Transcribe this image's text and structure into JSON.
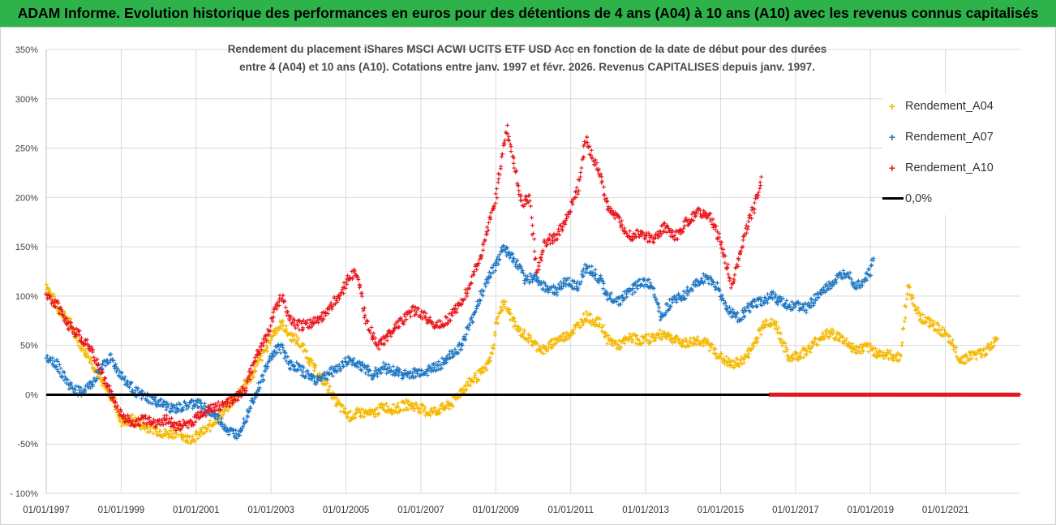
{
  "banner": {
    "title": "ADAM Informe. Evolution historique des performances en euros pour des détentions de 4 ans (A04) à 10 ans (A10) avec les revenus connus capitalisés"
  },
  "chart_data": {
    "type": "scatter",
    "title_line1": "Rendement du placement iShares MSCI ACWI UCITS ETF USD Acc en fonction de la date de début pour des durées",
    "title_line2": "entre 4 (A04) et 10 ans (A10). Cotations entre janv. 1997 et févr. 2026. Revenus CAPITALISES depuis janv. 1997.",
    "ylim": [
      -100,
      350
    ],
    "yticks": [
      -100,
      -50,
      0,
      50,
      100,
      150,
      200,
      250,
      300,
      350
    ],
    "ytick_labels": [
      "- 100%",
      "-50%",
      "0%",
      "50%",
      "100%",
      "150%",
      "200%",
      "250%",
      "300%",
      "350%"
    ],
    "xlim": [
      1997.0,
      2023.0
    ],
    "xticks": [
      1997,
      1999,
      2001,
      2003,
      2005,
      2007,
      2009,
      2011,
      2013,
      2015,
      2017,
      2019,
      2021
    ],
    "xtick_labels": [
      "01/01/1997",
      "01/01/1999",
      "01/01/2001",
      "01/01/2003",
      "01/01/2005",
      "01/01/2007",
      "01/01/2009",
      "01/01/2011",
      "01/01/2013",
      "01/01/2015",
      "01/01/2017",
      "01/01/2019",
      "01/01/2021"
    ],
    "zero_line_label": "0,0%",
    "series": [
      {
        "name": "Rendement_A04",
        "color": "#f5b800",
        "points": [
          [
            1997.0,
            112
          ],
          [
            1997.3,
            88
          ],
          [
            1997.6,
            75
          ],
          [
            1997.9,
            52
          ],
          [
            1998.2,
            35
          ],
          [
            1998.5,
            10
          ],
          [
            1998.8,
            -5
          ],
          [
            1999.0,
            -28
          ],
          [
            1999.3,
            -25
          ],
          [
            1999.6,
            -32
          ],
          [
            1999.9,
            -35
          ],
          [
            2000.2,
            -40
          ],
          [
            2000.5,
            -38
          ],
          [
            2000.8,
            -45
          ],
          [
            2001.0,
            -42
          ],
          [
            2001.3,
            -35
          ],
          [
            2001.6,
            -22
          ],
          [
            2001.9,
            -10
          ],
          [
            2002.2,
            5
          ],
          [
            2002.5,
            20
          ],
          [
            2002.7,
            35
          ],
          [
            2002.9,
            50
          ],
          [
            2003.1,
            65
          ],
          [
            2003.3,
            72
          ],
          [
            2003.5,
            60
          ],
          [
            2003.7,
            55
          ],
          [
            2003.9,
            45
          ],
          [
            2004.1,
            30
          ],
          [
            2004.3,
            18
          ],
          [
            2004.5,
            10
          ],
          [
            2004.7,
            -5
          ],
          [
            2004.9,
            -15
          ],
          [
            2005.1,
            -22
          ],
          [
            2005.4,
            -18
          ],
          [
            2005.7,
            -20
          ],
          [
            2006.0,
            -12
          ],
          [
            2006.3,
            -15
          ],
          [
            2006.6,
            -10
          ],
          [
            2006.9,
            -12
          ],
          [
            2007.2,
            -18
          ],
          [
            2007.5,
            -15
          ],
          [
            2007.8,
            -10
          ],
          [
            2008.1,
            5
          ],
          [
            2008.4,
            15
          ],
          [
            2008.7,
            25
          ],
          [
            2008.9,
            40
          ],
          [
            2009.0,
            70
          ],
          [
            2009.2,
            95
          ],
          [
            2009.4,
            80
          ],
          [
            2009.6,
            65
          ],
          [
            2009.8,
            60
          ],
          [
            2010.0,
            52
          ],
          [
            2010.3,
            45
          ],
          [
            2010.6,
            55
          ],
          [
            2010.9,
            60
          ],
          [
            2011.2,
            70
          ],
          [
            2011.4,
            80
          ],
          [
            2011.6,
            75
          ],
          [
            2011.8,
            72
          ],
          [
            2012.0,
            55
          ],
          [
            2012.3,
            50
          ],
          [
            2012.6,
            58
          ],
          [
            2012.9,
            55
          ],
          [
            2013.2,
            58
          ],
          [
            2013.5,
            62
          ],
          [
            2013.8,
            55
          ],
          [
            2014.1,
            52
          ],
          [
            2014.4,
            56
          ],
          [
            2014.7,
            50
          ],
          [
            2015.0,
            38
          ],
          [
            2015.3,
            30
          ],
          [
            2015.6,
            35
          ],
          [
            2015.8,
            45
          ],
          [
            2016.0,
            60
          ],
          [
            2016.2,
            75
          ],
          [
            2016.5,
            70
          ],
          [
            2016.8,
            38
          ],
          [
            2017.1,
            40
          ],
          [
            2017.4,
            48
          ],
          [
            2017.7,
            60
          ],
          [
            2018.0,
            62
          ],
          [
            2018.3,
            55
          ],
          [
            2018.6,
            45
          ],
          [
            2018.9,
            48
          ],
          [
            2019.2,
            42
          ],
          [
            2019.5,
            40
          ],
          [
            2019.8,
            38
          ],
          [
            2020.0,
            110
          ],
          [
            2020.3,
            80
          ],
          [
            2020.6,
            72
          ],
          [
            2020.9,
            65
          ],
          [
            2021.2,
            50
          ],
          [
            2021.4,
            35
          ],
          [
            2021.7,
            40
          ],
          [
            2022.0,
            42
          ],
          [
            2022.2,
            48
          ],
          [
            2022.4,
            60
          ]
        ]
      },
      {
        "name": "Rendement_A07",
        "color": "#1f77c4",
        "points": [
          [
            1997.0,
            40
          ],
          [
            1997.3,
            30
          ],
          [
            1997.6,
            10
          ],
          [
            1997.9,
            2
          ],
          [
            1998.2,
            10
          ],
          [
            1998.5,
            30
          ],
          [
            1998.7,
            38
          ],
          [
            1998.9,
            25
          ],
          [
            1999.2,
            10
          ],
          [
            1999.5,
            0
          ],
          [
            1999.8,
            -5
          ],
          [
            2000.1,
            -10
          ],
          [
            2000.4,
            -15
          ],
          [
            2000.7,
            -12
          ],
          [
            2001.0,
            -8
          ],
          [
            2001.3,
            -15
          ],
          [
            2001.6,
            -25
          ],
          [
            2001.9,
            -38
          ],
          [
            2002.1,
            -40
          ],
          [
            2002.3,
            -25
          ],
          [
            2002.5,
            -5
          ],
          [
            2002.7,
            10
          ],
          [
            2002.9,
            30
          ],
          [
            2003.1,
            45
          ],
          [
            2003.3,
            48
          ],
          [
            2003.5,
            30
          ],
          [
            2003.7,
            28
          ],
          [
            2003.9,
            22
          ],
          [
            2004.2,
            15
          ],
          [
            2004.5,
            20
          ],
          [
            2004.8,
            28
          ],
          [
            2005.1,
            35
          ],
          [
            2005.4,
            30
          ],
          [
            2005.7,
            20
          ],
          [
            2006.0,
            28
          ],
          [
            2006.3,
            24
          ],
          [
            2006.6,
            20
          ],
          [
            2006.9,
            22
          ],
          [
            2007.2,
            25
          ],
          [
            2007.5,
            30
          ],
          [
            2007.8,
            40
          ],
          [
            2008.1,
            50
          ],
          [
            2008.4,
            80
          ],
          [
            2008.6,
            100
          ],
          [
            2008.8,
            120
          ],
          [
            2009.0,
            130
          ],
          [
            2009.2,
            150
          ],
          [
            2009.4,
            140
          ],
          [
            2009.6,
            130
          ],
          [
            2009.8,
            115
          ],
          [
            2010.0,
            120
          ],
          [
            2010.3,
            110
          ],
          [
            2010.6,
            105
          ],
          [
            2010.9,
            115
          ],
          [
            2011.2,
            110
          ],
          [
            2011.4,
            130
          ],
          [
            2011.6,
            125
          ],
          [
            2011.8,
            115
          ],
          [
            2012.0,
            100
          ],
          [
            2012.3,
            95
          ],
          [
            2012.6,
            105
          ],
          [
            2012.9,
            115
          ],
          [
            2013.2,
            110
          ],
          [
            2013.4,
            80
          ],
          [
            2013.7,
            95
          ],
          [
            2014.0,
            100
          ],
          [
            2014.3,
            110
          ],
          [
            2014.6,
            120
          ],
          [
            2014.9,
            110
          ],
          [
            2015.2,
            85
          ],
          [
            2015.5,
            78
          ],
          [
            2015.8,
            90
          ],
          [
            2016.1,
            95
          ],
          [
            2016.4,
            100
          ],
          [
            2016.7,
            92
          ],
          [
            2017.0,
            90
          ],
          [
            2017.3,
            88
          ],
          [
            2017.6,
            100
          ],
          [
            2017.9,
            110
          ],
          [
            2018.2,
            120
          ],
          [
            2018.4,
            125
          ],
          [
            2018.6,
            110
          ],
          [
            2018.8,
            115
          ],
          [
            2019.0,
            125
          ],
          [
            2019.1,
            140
          ]
        ]
      },
      {
        "name": "Rendement_A10",
        "color": "#e8171d",
        "points": [
          [
            1997.0,
            100
          ],
          [
            1997.3,
            90
          ],
          [
            1997.6,
            70
          ],
          [
            1997.9,
            60
          ],
          [
            1998.2,
            45
          ],
          [
            1998.5,
            20
          ],
          [
            1998.8,
            -5
          ],
          [
            1999.0,
            -20
          ],
          [
            1999.3,
            -30
          ],
          [
            1999.6,
            -25
          ],
          [
            1999.9,
            -28
          ],
          [
            2000.2,
            -25
          ],
          [
            2000.5,
            -32
          ],
          [
            2000.8,
            -30
          ],
          [
            2001.1,
            -20
          ],
          [
            2001.4,
            -15
          ],
          [
            2001.7,
            -10
          ],
          [
            2002.0,
            -5
          ],
          [
            2002.3,
            5
          ],
          [
            2002.6,
            40
          ],
          [
            2002.9,
            60
          ],
          [
            2003.1,
            85
          ],
          [
            2003.3,
            100
          ],
          [
            2003.5,
            75
          ],
          [
            2003.8,
            70
          ],
          [
            2004.1,
            72
          ],
          [
            2004.4,
            80
          ],
          [
            2004.7,
            95
          ],
          [
            2004.9,
            105
          ],
          [
            2005.1,
            120
          ],
          [
            2005.3,
            125
          ],
          [
            2005.5,
            80
          ],
          [
            2005.7,
            60
          ],
          [
            2005.9,
            50
          ],
          [
            2006.2,
            65
          ],
          [
            2006.5,
            75
          ],
          [
            2006.8,
            85
          ],
          [
            2007.1,
            80
          ],
          [
            2007.4,
            70
          ],
          [
            2007.7,
            75
          ],
          [
            2008.0,
            90
          ],
          [
            2008.3,
            110
          ],
          [
            2008.6,
            140
          ],
          [
            2008.8,
            170
          ],
          [
            2009.0,
            200
          ],
          [
            2009.2,
            250
          ],
          [
            2009.3,
            270
          ],
          [
            2009.5,
            230
          ],
          [
            2009.7,
            195
          ],
          [
            2009.9,
            200
          ],
          [
            2010.1,
            120
          ],
          [
            2010.3,
            155
          ],
          [
            2010.6,
            160
          ],
          [
            2010.9,
            180
          ],
          [
            2011.2,
            210
          ],
          [
            2011.4,
            260
          ],
          [
            2011.6,
            240
          ],
          [
            2011.8,
            220
          ],
          [
            2012.0,
            190
          ],
          [
            2012.3,
            175
          ],
          [
            2012.6,
            160
          ],
          [
            2012.9,
            165
          ],
          [
            2013.2,
            155
          ],
          [
            2013.5,
            170
          ],
          [
            2013.8,
            160
          ],
          [
            2014.1,
            175
          ],
          [
            2014.4,
            185
          ],
          [
            2014.7,
            180
          ],
          [
            2014.9,
            165
          ],
          [
            2015.1,
            140
          ],
          [
            2015.3,
            110
          ],
          [
            2015.5,
            140
          ],
          [
            2015.7,
            170
          ],
          [
            2015.9,
            190
          ],
          [
            2016.1,
            220
          ],
          [
            2016.3,
            0
          ],
          [
            2017.0,
            0
          ],
          [
            2018.0,
            0
          ],
          [
            2019.0,
            0
          ],
          [
            2020.0,
            0
          ],
          [
            2021.0,
            0
          ],
          [
            2022.0,
            0
          ],
          [
            2023.0,
            0
          ]
        ]
      }
    ],
    "legend": [
      "Rendement_A04",
      "Rendement_A07",
      "Rendement_A10",
      "0,0%"
    ]
  }
}
